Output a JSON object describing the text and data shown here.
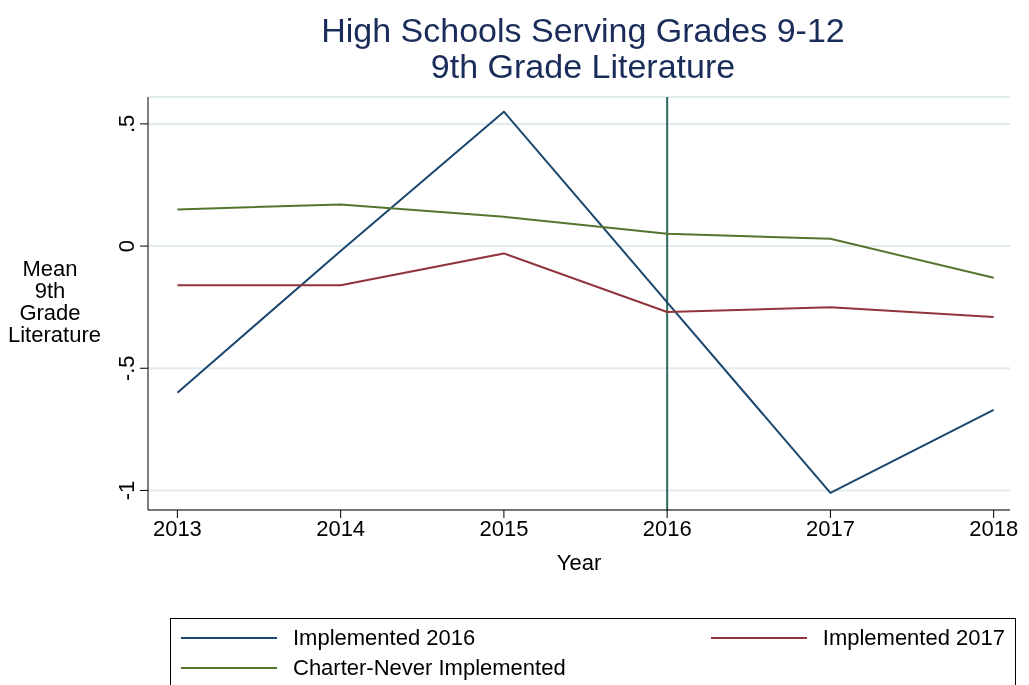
{
  "chart_data": {
    "type": "line",
    "title": "High Schools Serving Grades 9-12",
    "subtitle": "9th Grade Literature",
    "xlabel": "Year",
    "ylabel": "Mean 9th Grade Literature",
    "x": [
      2013,
      2014,
      2015,
      2016,
      2017,
      2018
    ],
    "series": [
      {
        "name": "Implemented 2016",
        "color": "#1a476f",
        "values": [
          -0.6,
          -0.02,
          0.55,
          -0.23,
          -1.01,
          -0.67
        ]
      },
      {
        "name": "Implemented 2017",
        "color": "#90353b",
        "values": [
          -0.16,
          -0.16,
          -0.03,
          -0.27,
          -0.25,
          -0.29
        ]
      },
      {
        "name": "Charter-Never Implemented",
        "color": "#55752f",
        "values": [
          0.15,
          0.17,
          0.12,
          0.05,
          0.03,
          -0.13
        ]
      }
    ],
    "xlim": [
      2012.82,
      2018.1
    ],
    "xticks": [
      2013,
      2014,
      2015,
      2016,
      2017,
      2018
    ],
    "ylim": [
      -1.08,
      0.61
    ],
    "yticks": [
      -1,
      {
        "value": -0.5,
        "label": "-.5"
      },
      0,
      {
        "value": 0.5,
        "label": ".5"
      }
    ],
    "ref_lines": [
      {
        "axis": "x",
        "value": 2016,
        "color": "#2b6b5e"
      }
    ],
    "grid": "y",
    "legend": "bottom",
    "marker": "none",
    "line_style": "solid"
  }
}
